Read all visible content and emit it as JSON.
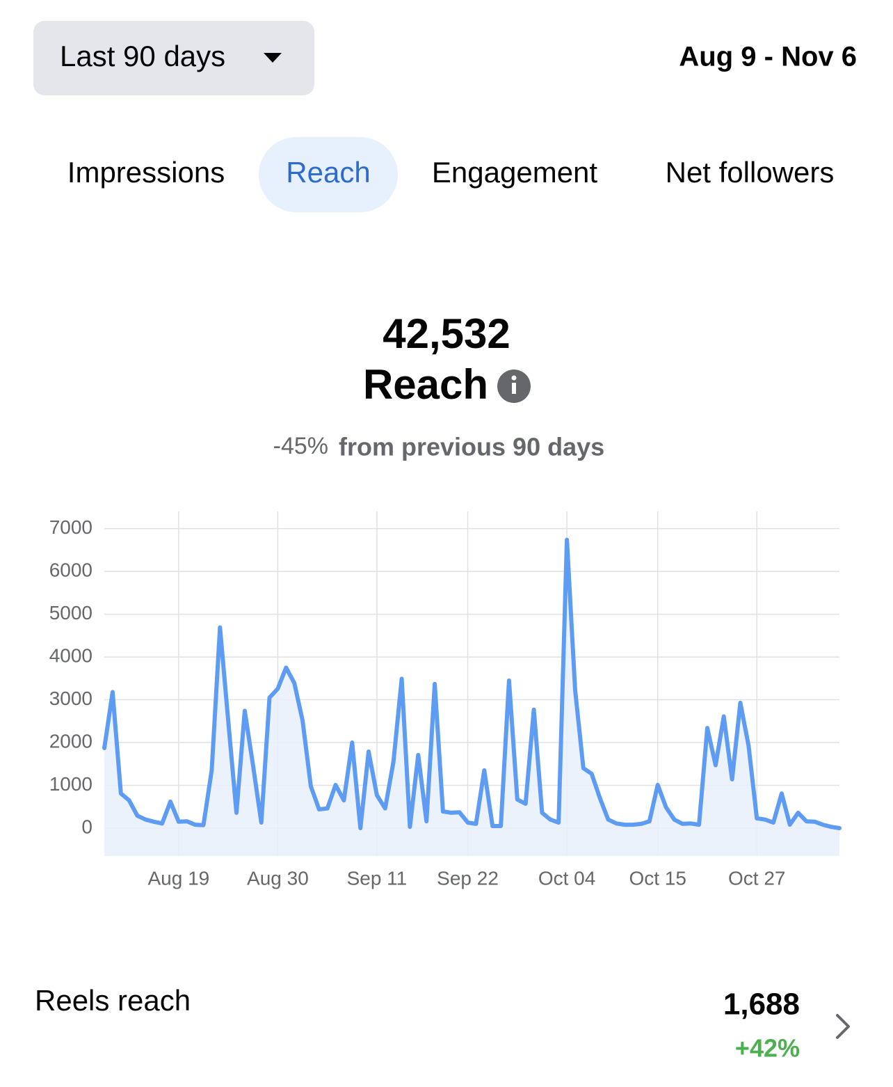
{
  "header": {
    "period": "Last 90 days",
    "date_range": "Aug 9 - Nov 6"
  },
  "tabs": {
    "items": [
      "Impressions",
      "Reach",
      "Engagement",
      "Net followers"
    ],
    "active": 1
  },
  "summary": {
    "value": "42,532",
    "label": "Reach",
    "change": "-45%",
    "change_text": "from previous 90 days"
  },
  "chart_data": {
    "type": "line",
    "color": "#5e9cf3",
    "fill_color": "#e8f0fc",
    "grid": true,
    "categories": [
      null,
      null,
      null,
      null,
      null,
      null,
      null,
      null,
      null,
      "Aug 19",
      null,
      null,
      null,
      null,
      null,
      null,
      null,
      null,
      null,
      null,
      null,
      "Aug 30",
      null,
      null,
      null,
      null,
      null,
      null,
      null,
      null,
      null,
      null,
      null,
      "Sep 11",
      null,
      null,
      null,
      null,
      null,
      null,
      null,
      null,
      null,
      null,
      "Sep 22",
      null,
      null,
      null,
      null,
      null,
      null,
      null,
      null,
      null,
      null,
      null,
      "Oct 04",
      null,
      null,
      null,
      null,
      null,
      null,
      null,
      null,
      null,
      null,
      "Oct 15",
      null,
      null,
      null,
      null,
      null,
      null,
      null,
      null,
      null,
      null,
      null,
      "Oct 27",
      null,
      null,
      null,
      null,
      null,
      null,
      null,
      null,
      null,
      null
    ],
    "values": [
      1870,
      3180,
      810,
      650,
      290,
      200,
      150,
      110,
      620,
      150,
      160,
      80,
      70,
      1350,
      4690,
      2520,
      360,
      2740,
      1470,
      130,
      3050,
      3260,
      3750,
      3390,
      2520,
      980,
      440,
      460,
      1010,
      650,
      2000,
      0,
      1790,
      770,
      460,
      1550,
      3490,
      30,
      1710,
      160,
      3370,
      390,
      360,
      370,
      130,
      100,
      1350,
      50,
      50,
      3450,
      670,
      570,
      2770,
      360,
      200,
      130,
      6740,
      3220,
      1400,
      1270,
      700,
      200,
      110,
      80,
      80,
      100,
      160,
      1010,
      490,
      200,
      100,
      110,
      80,
      2340,
      1470,
      2610,
      1140,
      2930,
      1920,
      230,
      200,
      130,
      810,
      80,
      360,
      160,
      150,
      80,
      30,
      0
    ],
    "ylim": [
      -650,
      7400
    ],
    "yticks": [
      0,
      1000,
      2000,
      3000,
      4000,
      5000,
      6000,
      7000
    ]
  },
  "reels": {
    "label": "Reels reach",
    "value": "1,688",
    "change": "+42%"
  }
}
